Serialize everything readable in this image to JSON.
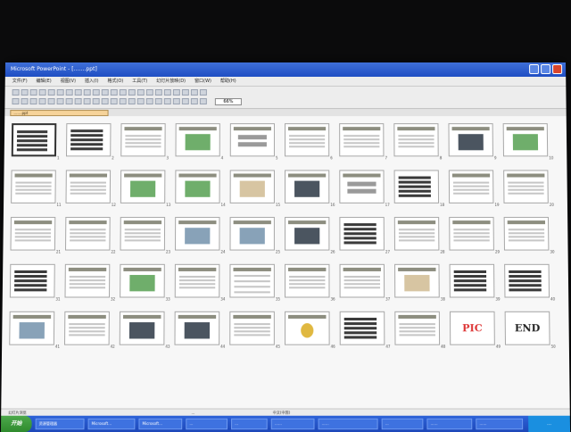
{
  "window": {
    "title": "Microsoft PowerPoint - […….ppt]"
  },
  "menu": {
    "items": [
      "文件(F)",
      "编辑(E)",
      "视图(V)",
      "插入(I)",
      "格式(O)",
      "工具(T)",
      "幻灯片放映(D)",
      "窗口(W)",
      "帮助(H)"
    ]
  },
  "toolbar": {
    "zoom": "66%"
  },
  "document_tab": {
    "label": "…….ppt"
  },
  "slides": {
    "row1": [
      {
        "num": "1",
        "type": "dark"
      },
      {
        "num": "2",
        "type": "dark"
      },
      {
        "num": "3",
        "type": "text"
      },
      {
        "num": "4",
        "type": "green"
      },
      {
        "num": "5",
        "type": "blocks"
      },
      {
        "num": "6",
        "type": "text"
      },
      {
        "num": "7",
        "type": "text"
      },
      {
        "num": "8",
        "type": "text"
      },
      {
        "num": "9",
        "type": "photo"
      },
      {
        "num": "10",
        "type": "green"
      }
    ],
    "row2": [
      {
        "num": "11",
        "type": "text"
      },
      {
        "num": "12",
        "type": "text"
      },
      {
        "num": "13",
        "type": "chart"
      },
      {
        "num": "14",
        "type": "green"
      },
      {
        "num": "15",
        "type": "map"
      },
      {
        "num": "16",
        "type": "photo"
      },
      {
        "num": "17",
        "type": "blocks"
      },
      {
        "num": "18",
        "type": "dark"
      },
      {
        "num": "19",
        "type": "text"
      },
      {
        "num": "20",
        "type": "text"
      }
    ],
    "row3": [
      {
        "num": "21",
        "type": "text"
      },
      {
        "num": "22",
        "type": "text"
      },
      {
        "num": "23",
        "type": "text"
      },
      {
        "num": "24",
        "type": "img"
      },
      {
        "num": "25",
        "type": "img"
      },
      {
        "num": "26",
        "type": "photo"
      },
      {
        "num": "27",
        "type": "dark"
      },
      {
        "num": "28",
        "type": "text"
      },
      {
        "num": "29",
        "type": "text"
      },
      {
        "num": "30",
        "type": "text"
      }
    ],
    "row4": [
      {
        "num": "31",
        "type": "dark"
      },
      {
        "num": "32",
        "type": "text"
      },
      {
        "num": "33",
        "type": "chart"
      },
      {
        "num": "34",
        "type": "text"
      },
      {
        "num": "35",
        "type": "list"
      },
      {
        "num": "36",
        "type": "text"
      },
      {
        "num": "37",
        "type": "text"
      },
      {
        "num": "38",
        "type": "map"
      },
      {
        "num": "39",
        "type": "dark"
      },
      {
        "num": "40",
        "type": "dark"
      }
    ],
    "row5": [
      {
        "num": "41",
        "type": "img"
      },
      {
        "num": "42",
        "type": "text"
      },
      {
        "num": "43",
        "type": "photo"
      },
      {
        "num": "44",
        "type": "photo"
      },
      {
        "num": "45",
        "type": "text"
      },
      {
        "num": "46",
        "type": "pie"
      },
      {
        "num": "47",
        "type": "dark"
      },
      {
        "num": "48",
        "type": "text"
      },
      {
        "num": "49",
        "type": "big",
        "text": "PIC"
      },
      {
        "num": "50",
        "type": "bigdark",
        "text": "END"
      }
    ]
  },
  "statusbar": {
    "left": "幻灯片浏览",
    "middle": "…",
    "right": "中文(中国)"
  },
  "taskbar": {
    "start": "开始",
    "tasks": [
      "资源管理器",
      "Microsoft…",
      "Microsoft…",
      "…",
      "…",
      "……",
      "……",
      "…",
      "……",
      "……"
    ],
    "time": "…"
  }
}
